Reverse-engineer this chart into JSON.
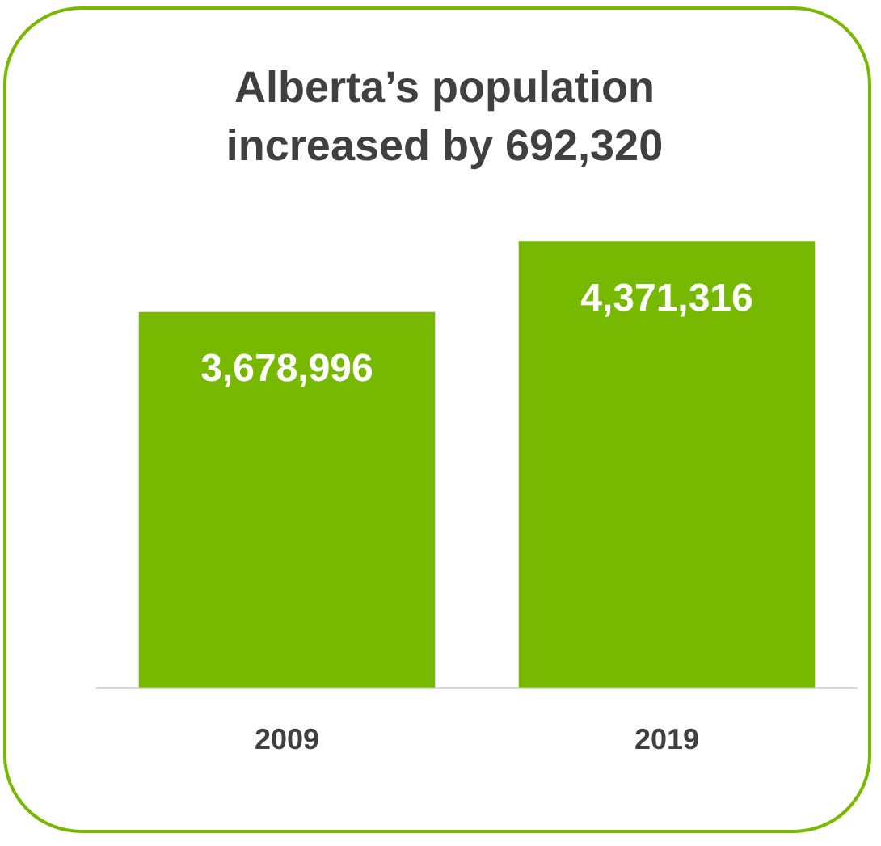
{
  "chart_data": {
    "type": "bar",
    "title": "Alberta’s population increased by 692,320",
    "categories": [
      "2009",
      "2019"
    ],
    "values": [
      3678996,
      4371316
    ],
    "value_labels": [
      "3,678,996",
      "4,371,316"
    ],
    "color": "#76b900",
    "tick_labels": "x",
    "grid": false,
    "legend": false
  }
}
